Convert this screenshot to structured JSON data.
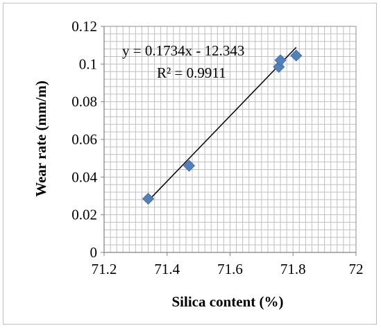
{
  "chart_data": {
    "type": "scatter",
    "title": "",
    "xlabel": "Silica content (%)",
    "ylabel": "Wear rate (mm/m)",
    "xlim": [
      71.2,
      72
    ],
    "ylim": [
      0,
      0.12
    ],
    "x_ticks": [
      "71.2",
      "71.4",
      "71.6",
      "71.8",
      "72"
    ],
    "y_ticks": [
      "0",
      "0.02",
      "0.04",
      "0.06",
      "0.08",
      "0.1",
      "0.12"
    ],
    "grid": true,
    "points": [
      {
        "x": 71.34,
        "y": 0.0285
      },
      {
        "x": 71.47,
        "y": 0.046
      },
      {
        "x": 71.755,
        "y": 0.0985
      },
      {
        "x": 71.76,
        "y": 0.102
      },
      {
        "x": 71.81,
        "y": 0.1045
      }
    ],
    "marker_color": "#4f81bd",
    "trendline": {
      "type": "linear",
      "equation": "y = 0.1734x - 12.343",
      "r_squared": "R² = 0.9911",
      "x_range": [
        71.34,
        71.81
      ]
    }
  }
}
